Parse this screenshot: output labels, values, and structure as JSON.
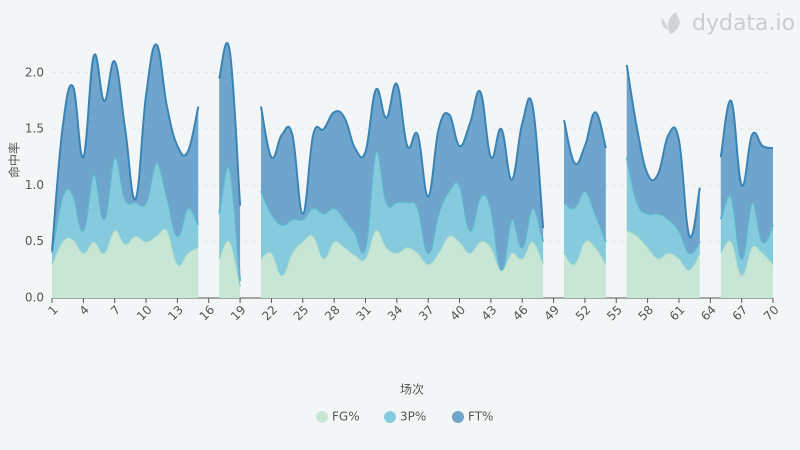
{
  "chart_data": {
    "type": "stacked-area",
    "watermark": "dydata.io",
    "ylabel": "命中率",
    "xlabel": "场次",
    "categories": [
      "1",
      "2",
      "3",
      "4",
      "5",
      "6",
      "7",
      "8",
      "9",
      "10",
      "11",
      "12",
      "13",
      "14",
      "15",
      "16",
      "17",
      "18",
      "19",
      "20",
      "21",
      "22",
      "23",
      "24",
      "25",
      "26",
      "27",
      "28",
      "29",
      "30",
      "31",
      "32",
      "33",
      "34",
      "35",
      "36",
      "37",
      "38",
      "39",
      "40",
      "41",
      "42",
      "43",
      "44",
      "45",
      "46",
      "47",
      "48",
      "49",
      "50",
      "51",
      "52",
      "53",
      "54",
      "55",
      "56",
      "57",
      "58",
      "59",
      "60",
      "61",
      "62",
      "63",
      "64",
      "65",
      "66",
      "67",
      "68",
      "69",
      "70"
    ],
    "xtick_every": 3,
    "ylim": [
      0,
      2.3
    ],
    "yticks": [
      {
        "value": 0,
        "label": "0.0"
      },
      {
        "value": 0.5,
        "label": "0.5"
      },
      {
        "value": 1,
        "label": "1.0"
      },
      {
        "value": 1.5,
        "label": "1.5"
      },
      {
        "value": 2,
        "label": "2.0"
      }
    ],
    "grid": true,
    "legend": "bottom",
    "series": [
      {
        "name": "FG%",
        "color": "#b5dfc8",
        "fill": "#c8e6d6",
        "values": [
          0.3,
          0.5,
          0.52,
          0.4,
          0.5,
          0.4,
          0.6,
          0.48,
          0.55,
          0.5,
          0.55,
          0.6,
          0.3,
          0.4,
          0.45,
          null,
          0.35,
          0.5,
          0.1,
          null,
          0.35,
          0.4,
          0.2,
          0.4,
          0.5,
          0.55,
          0.35,
          0.5,
          0.45,
          0.38,
          0.35,
          0.6,
          0.45,
          0.4,
          0.45,
          0.4,
          0.3,
          0.4,
          0.55,
          0.5,
          0.4,
          0.5,
          0.45,
          0.25,
          0.4,
          0.35,
          0.5,
          0.3,
          null,
          0.4,
          0.3,
          0.5,
          0.45,
          0.3,
          null,
          0.6,
          0.55,
          0.45,
          0.35,
          0.4,
          0.35,
          0.25,
          0.4,
          null,
          0.4,
          0.5,
          0.2,
          0.45,
          0.4,
          0.3
        ]
      },
      {
        "name": "3P%",
        "color": "#5bbad0",
        "fill": "#85cbdd",
        "values": [
          0.1,
          0.4,
          0.4,
          0.2,
          0.6,
          0.3,
          0.65,
          0.4,
          0.3,
          0.35,
          0.65,
          0.3,
          0.25,
          0.4,
          0.2,
          null,
          0.4,
          0.65,
          0.05,
          null,
          0.6,
          0.35,
          0.45,
          0.3,
          0.2,
          0.25,
          0.4,
          0.3,
          0.25,
          0.2,
          0.1,
          0.7,
          0.4,
          0.45,
          0.4,
          0.4,
          0.1,
          0.35,
          0.4,
          0.5,
          0.2,
          0.4,
          0.35,
          0.0,
          0.3,
          0.1,
          0.3,
          0.2,
          null,
          0.45,
          0.5,
          0.45,
          0.3,
          0.2,
          null,
          0.65,
          0.3,
          0.3,
          0.4,
          0.3,
          0.25,
          0.15,
          0.1,
          null,
          0.3,
          0.4,
          0.15,
          0.4,
          0.1,
          0.35
        ]
      },
      {
        "name": "FT%",
        "color": "#3a84b5",
        "fill": "#6fa5cc",
        "values": [
          0.02,
          0.6,
          0.96,
          0.65,
          1.05,
          1.05,
          0.85,
          0.62,
          0.03,
          0.95,
          1.05,
          0.8,
          0.8,
          0.5,
          1.05,
          null,
          1.2,
          1.05,
          0.67,
          null,
          0.75,
          0.5,
          0.8,
          0.75,
          0.05,
          0.65,
          0.75,
          0.85,
          0.9,
          0.75,
          0.85,
          0.55,
          0.75,
          1.05,
          0.5,
          0.65,
          0.5,
          0.75,
          0.68,
          0.35,
          0.95,
          0.93,
          0.45,
          1.25,
          0.35,
          1.1,
          0.9,
          0.12,
          null,
          0.73,
          0.4,
          0.4,
          0.9,
          0.83,
          null,
          0.82,
          0.65,
          0.35,
          0.35,
          0.75,
          0.8,
          0.15,
          0.48,
          null,
          0.55,
          0.85,
          0.65,
          0.6,
          0.85,
          0.68
        ]
      }
    ]
  }
}
